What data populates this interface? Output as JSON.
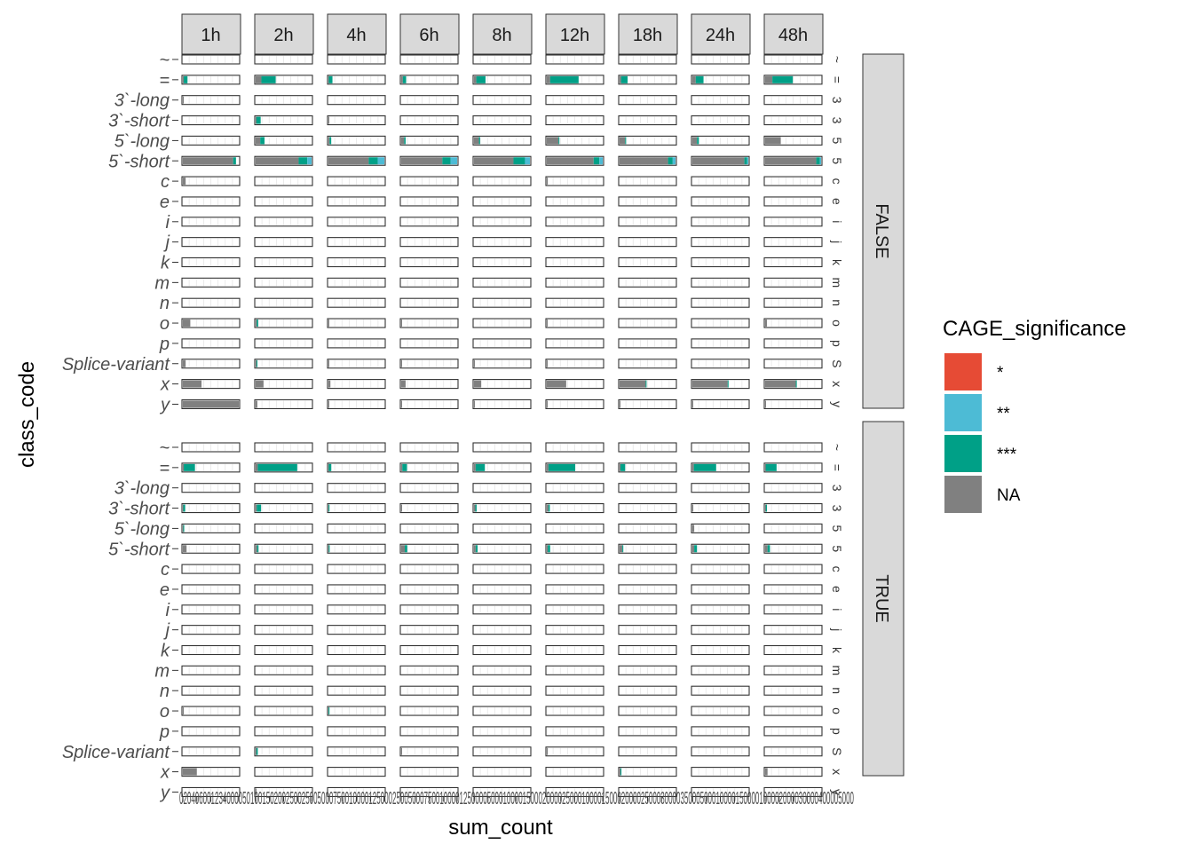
{
  "chart_data": {
    "type": "bar",
    "orientation": "horizontal",
    "stacked": true,
    "facet_columns": [
      "1h",
      "2h",
      "4h",
      "6h",
      "8h",
      "12h",
      "18h",
      "24h",
      "48h"
    ],
    "facet_rows": [
      "FALSE",
      "TRUE"
    ],
    "categories": [
      "~",
      "=",
      "3`-long",
      "3`-short",
      "5`-long",
      "5`-short",
      "c",
      "e",
      "i",
      "j",
      "k",
      "m",
      "n",
      "o",
      "p",
      "Splice-variant",
      "x",
      "y"
    ],
    "row_panel_leak_labels": [
      "~",
      "=",
      "3`-long",
      "3`-short",
      "5`-long",
      "5`-short",
      "c",
      "e",
      "i",
      "j",
      "k",
      "m",
      "n",
      "o",
      "p",
      "Splice-variant",
      "x",
      "y"
    ],
    "xlabel": "sum_count",
    "ylabel": "class_code",
    "xtick_labels": "020406001234000050100150200250025005000750010000125000250050007500100001250000500010000150002000025000100001500020000250003000035000500010000150000100002000030000400005000",
    "grid": true,
    "legend": {
      "title": "CAGE_significance",
      "position": "right",
      "entries": [
        {
          "label": "*",
          "color": "#E64B35"
        },
        {
          "label": "**",
          "color": "#4DBBD5"
        },
        {
          "label": "***",
          "color": "#00A087"
        },
        {
          "label": "NA",
          "color": "#808080"
        }
      ]
    },
    "series_order": [
      "NA",
      "***",
      "**",
      "*"
    ],
    "panels": {
      "FALSE": {
        "1h": {
          "=": [
            1,
            4,
            0,
            0
          ],
          "3`-long": [
            1,
            0,
            0,
            0
          ],
          "5`-short": [
            54,
            3,
            0,
            0
          ],
          "c": [
            3,
            0,
            0,
            0
          ],
          "o": [
            8,
            0,
            0,
            0
          ],
          "Splice-variant": [
            3,
            0,
            0,
            0
          ],
          "x": [
            20,
            0,
            0,
            0
          ],
          "y": [
            60,
            0,
            0,
            0
          ]
        },
        "2h": {
          "=": [
            400,
            1000,
            0,
            0
          ],
          "3`-short": [
            50,
            300,
            0,
            0
          ],
          "5`-long": [
            320,
            300,
            0,
            0
          ],
          "5`-short": [
            3000,
            600,
            300,
            0
          ],
          "o": [
            80,
            100,
            0,
            0
          ],
          "Splice-variant": [
            60,
            50,
            0,
            0
          ],
          "x": [
            550,
            0,
            0,
            0
          ],
          "y": [
            120,
            0,
            0,
            0
          ]
        },
        "4h": {
          "=": [
            20,
            225,
            0,
            0
          ],
          "3`-short": [
            15,
            0,
            0,
            0
          ],
          "5`-long": [
            70,
            100,
            0,
            0
          ],
          "5`-short": [
            2450,
            550,
            400,
            0
          ],
          "o": [
            20,
            0,
            0,
            0
          ],
          "Splice-variant": [
            25,
            0,
            0,
            0
          ],
          "x": [
            120,
            0,
            0,
            0
          ],
          "y": [
            20,
            0,
            0,
            0
          ]
        },
        "6h": {
          "=": [
            300,
            600,
            0,
            0
          ],
          "5`-long": [
            550,
            250,
            0,
            0
          ],
          "5`-short": [
            7500,
            1500,
            1200,
            0
          ],
          "o": [
            100,
            0,
            0,
            0
          ],
          "Splice-variant": [
            100,
            0,
            0,
            0
          ],
          "x": [
            800,
            0,
            0,
            0
          ],
          "y": [
            100,
            0,
            0,
            0
          ]
        },
        "8h": {
          "=": [
            700,
            2800,
            0,
            0
          ],
          "5`-long": [
            1500,
            350,
            0,
            0
          ],
          "5`-short": [
            12000,
            3500,
            1500,
            0
          ],
          "Splice-variant": [
            200,
            0,
            0,
            0
          ],
          "x": [
            2200,
            0,
            0,
            0
          ],
          "y": [
            200,
            0,
            0,
            0
          ]
        },
        "12h": {
          "=": [
            1000,
            8500,
            0,
            0
          ],
          "5`-long": [
            3500,
            200,
            0,
            0
          ],
          "5`-short": [
            14000,
            1700,
            1000,
            0
          ],
          "c": [
            300,
            0,
            0,
            0
          ],
          "o": [
            200,
            0,
            0,
            0
          ],
          "Splice-variant": [
            200,
            0,
            0,
            0
          ],
          "x": [
            5800,
            0,
            0,
            0
          ],
          "y": [
            200,
            0,
            0,
            0
          ]
        },
        "18h": {
          "=": [
            800,
            3500,
            0,
            0
          ],
          "5`-long": [
            3000,
            500,
            0,
            0
          ],
          "5`-short": [
            26000,
            2500,
            1500,
            0
          ],
          "x": [
            14000,
            200,
            0,
            0
          ],
          "y": [
            200,
            0,
            0,
            0
          ]
        },
        "24h": {
          "=": [
            1800,
            4200,
            0,
            0
          ],
          "5`-long": [
            2500,
            1000,
            0,
            0
          ],
          "5`-short": [
            28000,
            1500,
            600,
            0
          ],
          "x": [
            19000,
            200,
            0,
            0
          ],
          "y": [
            300,
            0,
            0,
            0
          ]
        },
        "48h": {
          "=": [
            6000,
            17000,
            0,
            0
          ],
          "5`-long": [
            13000,
            0,
            0,
            0
          ],
          "5`-short": [
            42500,
            3000,
            1000,
            0
          ],
          "o": [
            1500,
            0,
            0,
            0
          ],
          "x": [
            25500,
            800,
            0,
            0
          ],
          "y": [
            500,
            0,
            0,
            0
          ]
        }
      },
      "TRUE": {
        "1h": {
          "=": [
            1,
            12,
            0,
            0
          ],
          "3`-short": [
            0.5,
            2,
            0,
            0
          ],
          "5`-long": [
            0.5,
            0.5,
            0,
            0
          ],
          "5`-short": [
            4,
            0,
            0,
            0
          ],
          "o": [
            1,
            0,
            0,
            0
          ],
          "x": [
            15,
            0,
            0,
            0
          ]
        },
        "2h": {
          "=": [
            150,
            2750,
            0,
            0
          ],
          "3`-short": [
            80,
            300,
            0,
            0
          ],
          "5`-short": [
            100,
            100,
            0,
            0
          ],
          "Splice-variant": [
            50,
            100,
            0,
            0
          ],
          "y": [
            20,
            0,
            0,
            0
          ]
        },
        "4h": {
          "=": [
            15,
            160,
            0,
            0
          ],
          "3`-short": [
            10,
            30,
            0,
            0
          ],
          "5`-short": [
            20,
            40,
            0,
            0
          ],
          "o": [
            10,
            20,
            0,
            0
          ]
        },
        "6h": {
          "=": [
            200,
            850,
            0,
            0
          ],
          "3`-short": [
            100,
            0,
            0,
            0
          ],
          "5`-short": [
            650,
            450,
            0,
            0
          ],
          "Splice-variant": [
            100,
            0,
            0,
            0
          ]
        },
        "8h": {
          "=": [
            500,
            2800,
            0,
            0
          ],
          "3`-short": [
            400,
            400,
            0,
            0
          ],
          "5`-short": [
            500,
            600,
            0,
            0
          ]
        },
        "12h": {
          "=": [
            500,
            8000,
            0,
            0
          ],
          "3`-short": [
            500,
            400,
            0,
            0
          ],
          "5`-short": [
            300,
            700,
            0,
            0
          ],
          "Splice-variant": [
            300,
            0,
            0,
            0
          ]
        },
        "18h": {
          "=": [
            500,
            2500,
            0,
            0
          ],
          "5`-short": [
            1500,
            500,
            0,
            0
          ],
          "x": [
            500,
            500,
            0,
            0
          ]
        },
        "24h": {
          "=": [
            800,
            12000,
            0,
            0
          ],
          "3`-short": [
            500,
            0,
            0,
            0
          ],
          "5`-long": [
            1000,
            0,
            0,
            0
          ],
          "5`-short": [
            1000,
            1500,
            0,
            0
          ]
        },
        "48h": {
          "=": [
            500,
            9000,
            0,
            0
          ],
          "3`-short": [
            500,
            1000,
            0,
            0
          ],
          "5`-short": [
            2000,
            2000,
            0,
            0
          ],
          "x": [
            2000,
            0,
            0,
            0
          ]
        }
      }
    }
  }
}
